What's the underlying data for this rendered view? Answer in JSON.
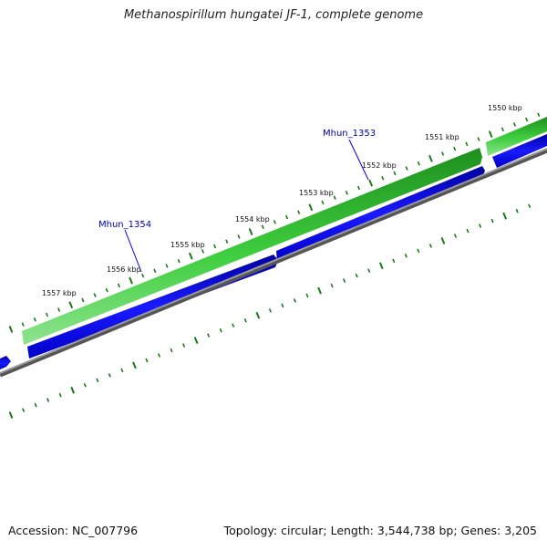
{
  "map": {
    "title": "Methanospirillum hungatei JF-1, complete genome",
    "accession": "Accession: NC_007796",
    "summary": "Topology: circular; Length: 3,544,738 bp; Genes: 3,205"
  },
  "scale_labels": [
    "1550 kbp",
    "1551 kbp",
    "1552 kbp",
    "1553 kbp",
    "1554 kbp",
    "1555 kbp",
    "1556 kbp",
    "1557 kbp"
  ],
  "genes": [
    {
      "label": "Mhun_1353"
    },
    {
      "label": "Mhun_1354"
    }
  ],
  "colors": {
    "forward_strand": "#2db82d",
    "reverse_strand": "#0000ee",
    "backbone": "#777777",
    "tick": "#1a7a1a",
    "gene_label": "#0000aa"
  }
}
